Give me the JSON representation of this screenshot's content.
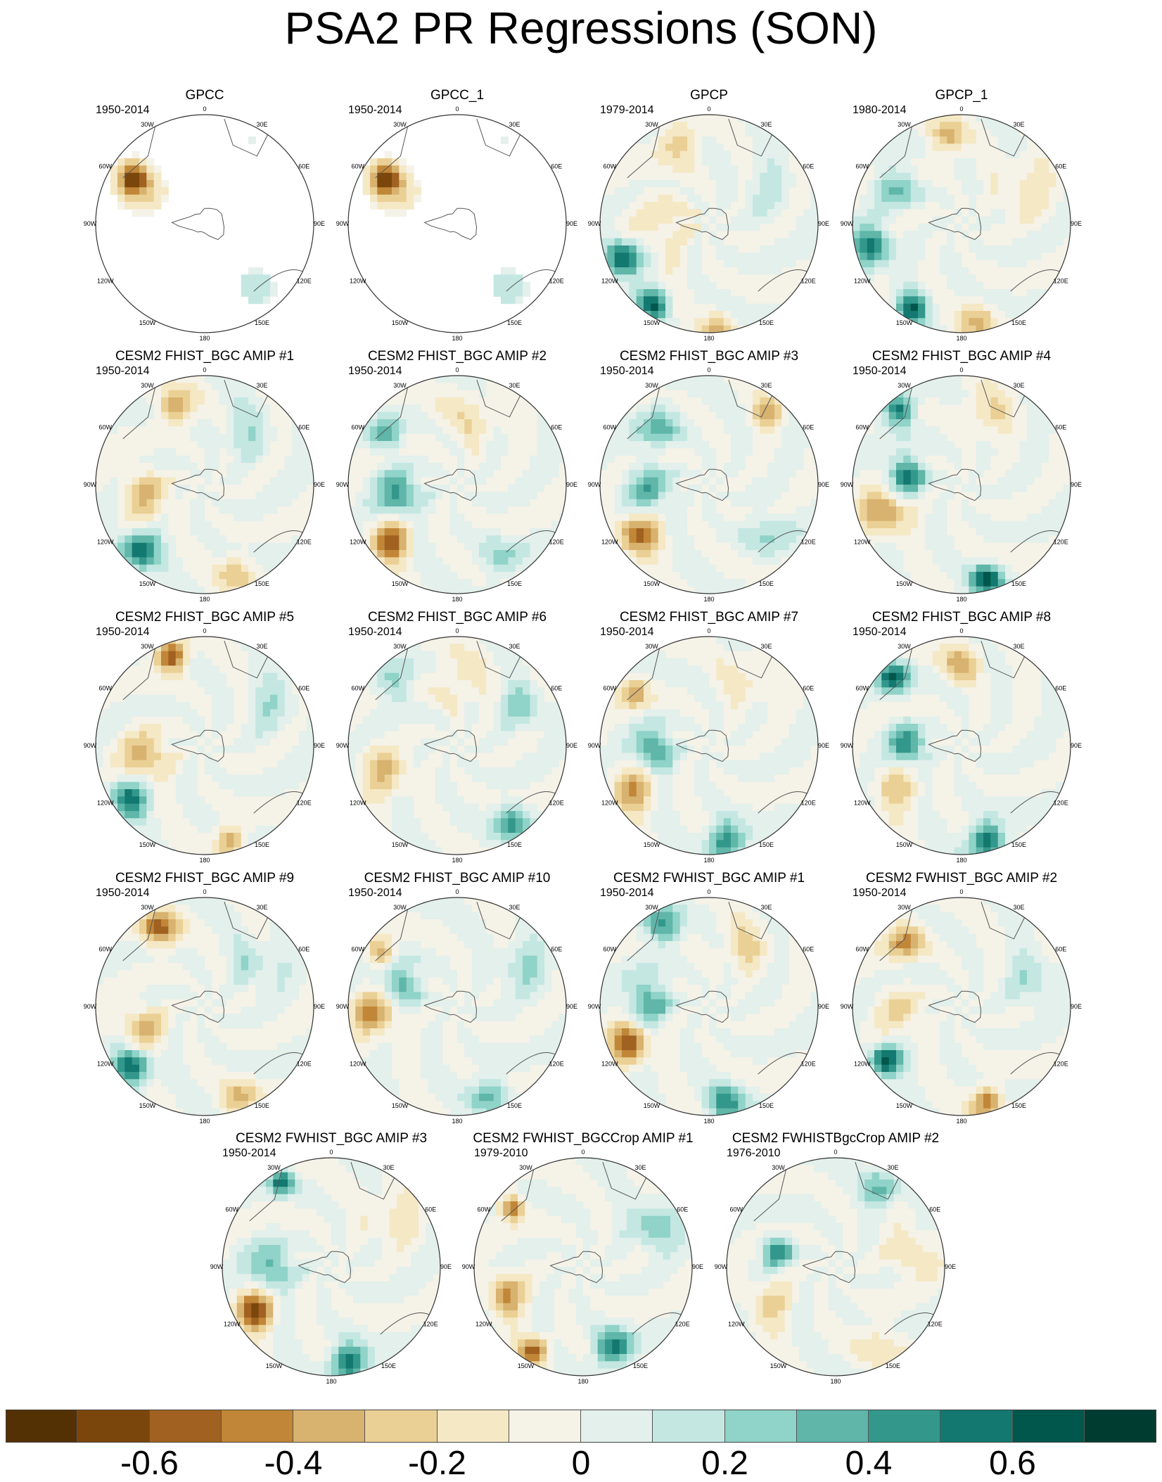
{
  "title": "PSA2 PR Regressions (SON)",
  "lon_labels": [
    "0",
    "30E",
    "60E",
    "90E",
    "120E",
    "150E",
    "180",
    "150W",
    "120W",
    "90W",
    "60W",
    "30W"
  ],
  "panels": [
    {
      "name": "GPCC",
      "years": "1950-2014",
      "coverage": "land",
      "pattern": [
        {
          "lon": -58,
          "r": 0.78,
          "v": -0.6,
          "s": 0.1
        },
        {
          "lon": -62,
          "r": 0.62,
          "v": -0.2,
          "s": 0.16
        },
        {
          "lon": 140,
          "r": 0.75,
          "v": 0.2,
          "s": 0.12
        },
        {
          "lon": 30,
          "r": 0.88,
          "v": 0.1,
          "s": 0.08
        }
      ]
    },
    {
      "name": "GPCC_1",
      "years": "1950-2014",
      "coverage": "land",
      "pattern": [
        {
          "lon": -58,
          "r": 0.78,
          "v": -0.6,
          "s": 0.1
        },
        {
          "lon": -62,
          "r": 0.62,
          "v": -0.2,
          "s": 0.16
        },
        {
          "lon": 140,
          "r": 0.75,
          "v": 0.2,
          "s": 0.12
        },
        {
          "lon": 30,
          "r": 0.88,
          "v": 0.1,
          "s": 0.08
        }
      ]
    },
    {
      "name": "GPCP",
      "years": "1979-2014",
      "coverage": "full",
      "pattern": [
        {
          "lon": -112,
          "r": 0.85,
          "v": 0.7,
          "s": 0.12
        },
        {
          "lon": -145,
          "r": 0.9,
          "v": 0.6,
          "s": 0.1
        },
        {
          "lon": 175,
          "r": 0.95,
          "v": -0.3,
          "s": 0.1
        },
        {
          "lon": -20,
          "r": 0.82,
          "v": -0.3,
          "s": 0.12
        },
        {
          "lon": -90,
          "r": 0.4,
          "v": -0.15,
          "s": 0.25
        },
        {
          "lon": 60,
          "r": 0.6,
          "v": 0.1,
          "s": 0.2
        }
      ]
    },
    {
      "name": "GPCP_1",
      "years": "1980-2014",
      "coverage": "full",
      "pattern": [
        {
          "lon": -105,
          "r": 0.85,
          "v": 0.55,
          "s": 0.13
        },
        {
          "lon": -150,
          "r": 0.9,
          "v": 0.6,
          "s": 0.1
        },
        {
          "lon": 170,
          "r": 0.9,
          "v": -0.3,
          "s": 0.12
        },
        {
          "lon": -10,
          "r": 0.8,
          "v": -0.35,
          "s": 0.12
        },
        {
          "lon": -60,
          "r": 0.7,
          "v": 0.3,
          "s": 0.14
        },
        {
          "lon": 60,
          "r": 0.65,
          "v": -0.15,
          "s": 0.2
        }
      ]
    },
    {
      "name": "CESM2 FHIST_BGC AMIP #1",
      "years": "1950-2014",
      "coverage": "full",
      "pattern": [
        {
          "lon": -135,
          "r": 0.85,
          "v": 0.65,
          "s": 0.12
        },
        {
          "lon": -20,
          "r": 0.75,
          "v": -0.4,
          "s": 0.12
        },
        {
          "lon": -100,
          "r": 0.55,
          "v": -0.3,
          "s": 0.16
        },
        {
          "lon": 160,
          "r": 0.85,
          "v": -0.25,
          "s": 0.12
        },
        {
          "lon": 40,
          "r": 0.6,
          "v": 0.15,
          "s": 0.18
        }
      ]
    },
    {
      "name": "CESM2 FHIST_BGC AMIP #2",
      "years": "1950-2014",
      "coverage": "full",
      "pattern": [
        {
          "lon": -130,
          "r": 0.8,
          "v": -0.55,
          "s": 0.13
        },
        {
          "lon": -100,
          "r": 0.55,
          "v": 0.45,
          "s": 0.14
        },
        {
          "lon": -55,
          "r": 0.8,
          "v": 0.4,
          "s": 0.1
        },
        {
          "lon": 150,
          "r": 0.8,
          "v": 0.2,
          "s": 0.14
        },
        {
          "lon": 10,
          "r": 0.6,
          "v": -0.15,
          "s": 0.2
        }
      ]
    },
    {
      "name": "CESM2 FHIST_BGC AMIP #3",
      "years": "1950-2014",
      "coverage": "full",
      "pattern": [
        {
          "lon": -125,
          "r": 0.8,
          "v": -0.55,
          "s": 0.13
        },
        {
          "lon": -95,
          "r": 0.55,
          "v": 0.35,
          "s": 0.15
        },
        {
          "lon": 40,
          "r": 0.85,
          "v": -0.35,
          "s": 0.1
        },
        {
          "lon": -40,
          "r": 0.7,
          "v": 0.3,
          "s": 0.14
        },
        {
          "lon": 130,
          "r": 0.7,
          "v": 0.15,
          "s": 0.18
        }
      ]
    },
    {
      "name": "CESM2 FHIST_BGC AMIP #4",
      "years": "1950-2014",
      "coverage": "full",
      "pattern": [
        {
          "lon": -110,
          "r": 0.75,
          "v": -0.45,
          "s": 0.14
        },
        {
          "lon": -80,
          "r": 0.5,
          "v": 0.55,
          "s": 0.12
        },
        {
          "lon": -40,
          "r": 0.9,
          "v": 0.6,
          "s": 0.1
        },
        {
          "lon": 165,
          "r": 0.9,
          "v": 0.65,
          "s": 0.1
        },
        {
          "lon": 20,
          "r": 0.7,
          "v": -0.2,
          "s": 0.16
        }
      ]
    },
    {
      "name": "CESM2 FHIST_BGC AMIP #5",
      "years": "1950-2014",
      "coverage": "full",
      "pattern": [
        {
          "lon": -20,
          "r": 0.88,
          "v": -0.65,
          "s": 0.1
        },
        {
          "lon": -125,
          "r": 0.85,
          "v": 0.55,
          "s": 0.12
        },
        {
          "lon": -100,
          "r": 0.55,
          "v": -0.35,
          "s": 0.15
        },
        {
          "lon": 165,
          "r": 0.9,
          "v": -0.4,
          "s": 0.1
        },
        {
          "lon": 60,
          "r": 0.7,
          "v": 0.15,
          "s": 0.18
        }
      ]
    },
    {
      "name": "CESM2 FHIST_BGC AMIP #6",
      "years": "1950-2014",
      "coverage": "full",
      "pattern": [
        {
          "lon": -110,
          "r": 0.7,
          "v": -0.3,
          "s": 0.15
        },
        {
          "lon": -45,
          "r": 0.8,
          "v": 0.3,
          "s": 0.12
        },
        {
          "lon": 145,
          "r": 0.85,
          "v": 0.4,
          "s": 0.12
        },
        {
          "lon": 60,
          "r": 0.7,
          "v": 0.25,
          "s": 0.14
        },
        {
          "lon": 0,
          "r": 0.6,
          "v": -0.15,
          "s": 0.18
        }
      ]
    },
    {
      "name": "CESM2 FHIST_BGC AMIP #7",
      "years": "1950-2014",
      "coverage": "full",
      "pattern": [
        {
          "lon": -95,
          "r": 0.5,
          "v": 0.45,
          "s": 0.13
        },
        {
          "lon": -120,
          "r": 0.8,
          "v": -0.4,
          "s": 0.14
        },
        {
          "lon": 170,
          "r": 0.9,
          "v": 0.55,
          "s": 0.12
        },
        {
          "lon": -55,
          "r": 0.85,
          "v": -0.35,
          "s": 0.1
        },
        {
          "lon": 30,
          "r": 0.7,
          "v": -0.15,
          "s": 0.18
        }
      ]
    },
    {
      "name": "CESM2 FHIST_BGC AMIP #8",
      "years": "1950-2014",
      "coverage": "full",
      "pattern": [
        {
          "lon": -90,
          "r": 0.5,
          "v": 0.5,
          "s": 0.12
        },
        {
          "lon": -45,
          "r": 0.88,
          "v": 0.6,
          "s": 0.1
        },
        {
          "lon": 165,
          "r": 0.9,
          "v": 0.6,
          "s": 0.12
        },
        {
          "lon": 0,
          "r": 0.75,
          "v": -0.35,
          "s": 0.12
        },
        {
          "lon": -125,
          "r": 0.7,
          "v": -0.25,
          "s": 0.15
        }
      ]
    },
    {
      "name": "CESM2 FHIST_BGC AMIP #9",
      "years": "1950-2014",
      "coverage": "full",
      "pattern": [
        {
          "lon": -130,
          "r": 0.85,
          "v": 0.6,
          "s": 0.12
        },
        {
          "lon": -30,
          "r": 0.82,
          "v": -0.5,
          "s": 0.12
        },
        {
          "lon": -110,
          "r": 0.6,
          "v": -0.35,
          "s": 0.14
        },
        {
          "lon": 160,
          "r": 0.9,
          "v": -0.3,
          "s": 0.12
        },
        {
          "lon": 50,
          "r": 0.6,
          "v": 0.2,
          "s": 0.16
        }
      ]
    },
    {
      "name": "CESM2 FHIST_BGC AMIP #10",
      "years": "1950-2014",
      "coverage": "full",
      "pattern": [
        {
          "lon": -95,
          "r": 0.75,
          "v": -0.45,
          "s": 0.14
        },
        {
          "lon": -70,
          "r": 0.55,
          "v": 0.4,
          "s": 0.13
        },
        {
          "lon": -55,
          "r": 0.85,
          "v": -0.45,
          "s": 0.08
        },
        {
          "lon": 160,
          "r": 0.85,
          "v": 0.35,
          "s": 0.12
        },
        {
          "lon": 60,
          "r": 0.7,
          "v": 0.2,
          "s": 0.16
        }
      ]
    },
    {
      "name": "CESM2 FWHIST_BGC AMIP #1",
      "years": "1950-2014",
      "coverage": "full",
      "pattern": [
        {
          "lon": -115,
          "r": 0.8,
          "v": -0.65,
          "s": 0.12
        },
        {
          "lon": -85,
          "r": 0.55,
          "v": 0.4,
          "s": 0.14
        },
        {
          "lon": -30,
          "r": 0.85,
          "v": 0.45,
          "s": 0.12
        },
        {
          "lon": 170,
          "r": 0.9,
          "v": 0.45,
          "s": 0.12
        },
        {
          "lon": 30,
          "r": 0.65,
          "v": -0.2,
          "s": 0.16
        }
      ]
    },
    {
      "name": "CESM2 FWHIST_BGC AMIP #2",
      "years": "1950-2014",
      "coverage": "full",
      "pattern": [
        {
          "lon": -125,
          "r": 0.85,
          "v": 0.7,
          "s": 0.1
        },
        {
          "lon": -40,
          "r": 0.8,
          "v": -0.4,
          "s": 0.12
        },
        {
          "lon": 165,
          "r": 0.9,
          "v": -0.5,
          "s": 0.1
        },
        {
          "lon": -95,
          "r": 0.55,
          "v": -0.2,
          "s": 0.16
        },
        {
          "lon": 70,
          "r": 0.7,
          "v": 0.2,
          "s": 0.16
        }
      ]
    },
    {
      "name": "CESM2 FWHIST_BGC AMIP #3",
      "years": "1950-2014",
      "coverage": "full",
      "pattern": [
        {
          "lon": -120,
          "r": 0.8,
          "v": -0.65,
          "s": 0.12
        },
        {
          "lon": -90,
          "r": 0.55,
          "v": 0.35,
          "s": 0.15
        },
        {
          "lon": 170,
          "r": 0.9,
          "v": 0.6,
          "s": 0.12
        },
        {
          "lon": -30,
          "r": 0.9,
          "v": 0.55,
          "s": 0.08
        },
        {
          "lon": 50,
          "r": 0.7,
          "v": -0.15,
          "s": 0.18
        }
      ]
    },
    {
      "name": "CESM2 FWHIST_BGCCrop AMIP #1",
      "years": "1979-2010",
      "coverage": "full",
      "pattern": [
        {
          "lon": -110,
          "r": 0.75,
          "v": -0.4,
          "s": 0.13
        },
        {
          "lon": -150,
          "r": 0.9,
          "v": -0.55,
          "s": 0.1
        },
        {
          "lon": 160,
          "r": 0.8,
          "v": 0.55,
          "s": 0.12
        },
        {
          "lon": -50,
          "r": 0.85,
          "v": -0.5,
          "s": 0.08
        },
        {
          "lon": 60,
          "r": 0.75,
          "v": 0.35,
          "s": 0.14
        }
      ]
    },
    {
      "name": "CESM2 FWHISTBgcCrop AMIP #2",
      "years": "1976-2010",
      "coverage": "full",
      "pattern": [
        {
          "lon": 30,
          "r": 0.85,
          "v": 0.35,
          "s": 0.12
        },
        {
          "lon": -75,
          "r": 0.55,
          "v": 0.45,
          "s": 0.1
        },
        {
          "lon": 80,
          "r": 0.7,
          "v": -0.25,
          "s": 0.14
        },
        {
          "lon": -120,
          "r": 0.7,
          "v": -0.2,
          "s": 0.16
        },
        {
          "lon": 150,
          "r": 0.8,
          "v": -0.15,
          "s": 0.16
        }
      ]
    }
  ],
  "colorbar": {
    "colors": [
      "#543005",
      "#7a460c",
      "#a16120",
      "#c18637",
      "#d8b26f",
      "#ead095",
      "#f5e8c5",
      "#f5f2e8",
      "#e3f0ec",
      "#c4e7e2",
      "#90d3c8",
      "#5fb6a9",
      "#33988b",
      "#137870",
      "#01574b",
      "#003c30"
    ],
    "tick_labels": [
      "-0.6",
      "-0.4",
      "-0.2",
      "0",
      "0.2",
      "0.4",
      "0.6"
    ]
  },
  "chart_data": {
    "type": "heatmap",
    "title": "PSA2 PR Regressions (SON)",
    "projection": "south polar stereographic",
    "variable": "PR",
    "season": "SON",
    "levels": [
      -0.7,
      -0.6,
      -0.5,
      -0.4,
      -0.3,
      -0.2,
      -0.1,
      0,
      0.1,
      0.2,
      0.3,
      0.4,
      0.5,
      0.6,
      0.7
    ],
    "colorbar_ticks": [
      -0.6,
      -0.4,
      -0.2,
      0,
      0.2,
      0.4,
      0.6
    ],
    "panels": [
      {
        "title": "GPCC",
        "period": "1950-2014"
      },
      {
        "title": "GPCC_1",
        "period": "1950-2014"
      },
      {
        "title": "GPCP",
        "period": "1979-2014"
      },
      {
        "title": "GPCP_1",
        "period": "1980-2014"
      },
      {
        "title": "CESM2 FHIST_BGC AMIP #1",
        "period": "1950-2014"
      },
      {
        "title": "CESM2 FHIST_BGC AMIP #2",
        "period": "1950-2014"
      },
      {
        "title": "CESM2 FHIST_BGC AMIP #3",
        "period": "1950-2014"
      },
      {
        "title": "CESM2 FHIST_BGC AMIP #4",
        "period": "1950-2014"
      },
      {
        "title": "CESM2 FHIST_BGC AMIP #5",
        "period": "1950-2014"
      },
      {
        "title": "CESM2 FHIST_BGC AMIP #6",
        "period": "1950-2014"
      },
      {
        "title": "CESM2 FHIST_BGC AMIP #7",
        "period": "1950-2014"
      },
      {
        "title": "CESM2 FHIST_BGC AMIP #8",
        "period": "1950-2014"
      },
      {
        "title": "CESM2 FHIST_BGC AMIP #9",
        "period": "1950-2014"
      },
      {
        "title": "CESM2 FHIST_BGC AMIP #10",
        "period": "1950-2014"
      },
      {
        "title": "CESM2 FWHIST_BGC AMIP #1",
        "period": "1950-2014"
      },
      {
        "title": "CESM2 FWHIST_BGC AMIP #2",
        "period": "1950-2014"
      },
      {
        "title": "CESM2 FWHIST_BGC AMIP #3",
        "period": "1950-2014"
      },
      {
        "title": "CESM2 FWHIST_BGCCrop AMIP #1",
        "period": "1979-2010"
      },
      {
        "title": "CESM2 FWHISTBgcCrop AMIP #2",
        "period": "1976-2010"
      }
    ]
  }
}
